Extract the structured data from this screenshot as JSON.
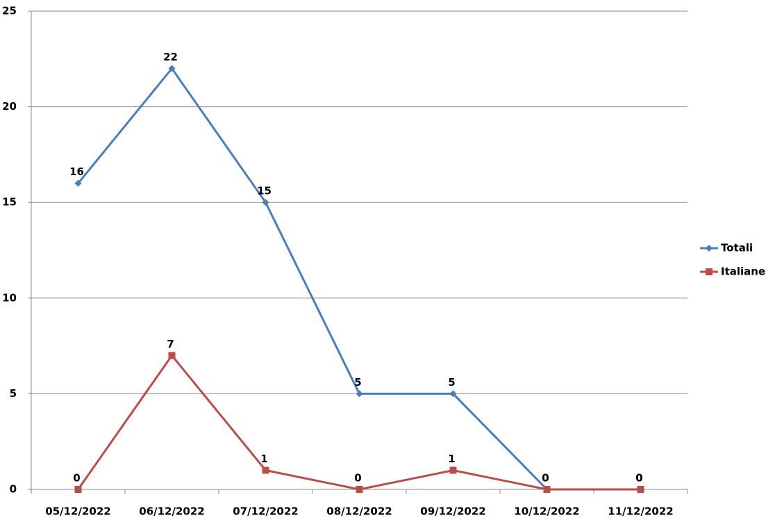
{
  "chart_data": {
    "type": "line",
    "categories": [
      "05/12/2022",
      "06/12/2022",
      "07/12/2022",
      "08/12/2022",
      "09/12/2022",
      "10/12/2022",
      "11/12/2022"
    ],
    "series": [
      {
        "name": "Totali",
        "color": "#4a7ebb",
        "marker": "diamond",
        "values": [
          16,
          22,
          15,
          5,
          5,
          0,
          0
        ]
      },
      {
        "name": "Italiane",
        "color": "#be4b48",
        "marker": "square",
        "values": [
          0,
          7,
          1,
          0,
          1,
          0,
          0
        ]
      }
    ],
    "ylim": [
      0,
      25
    ],
    "yticks": [
      0,
      5,
      10,
      15,
      20,
      25
    ],
    "grid": true,
    "legend": "right"
  }
}
